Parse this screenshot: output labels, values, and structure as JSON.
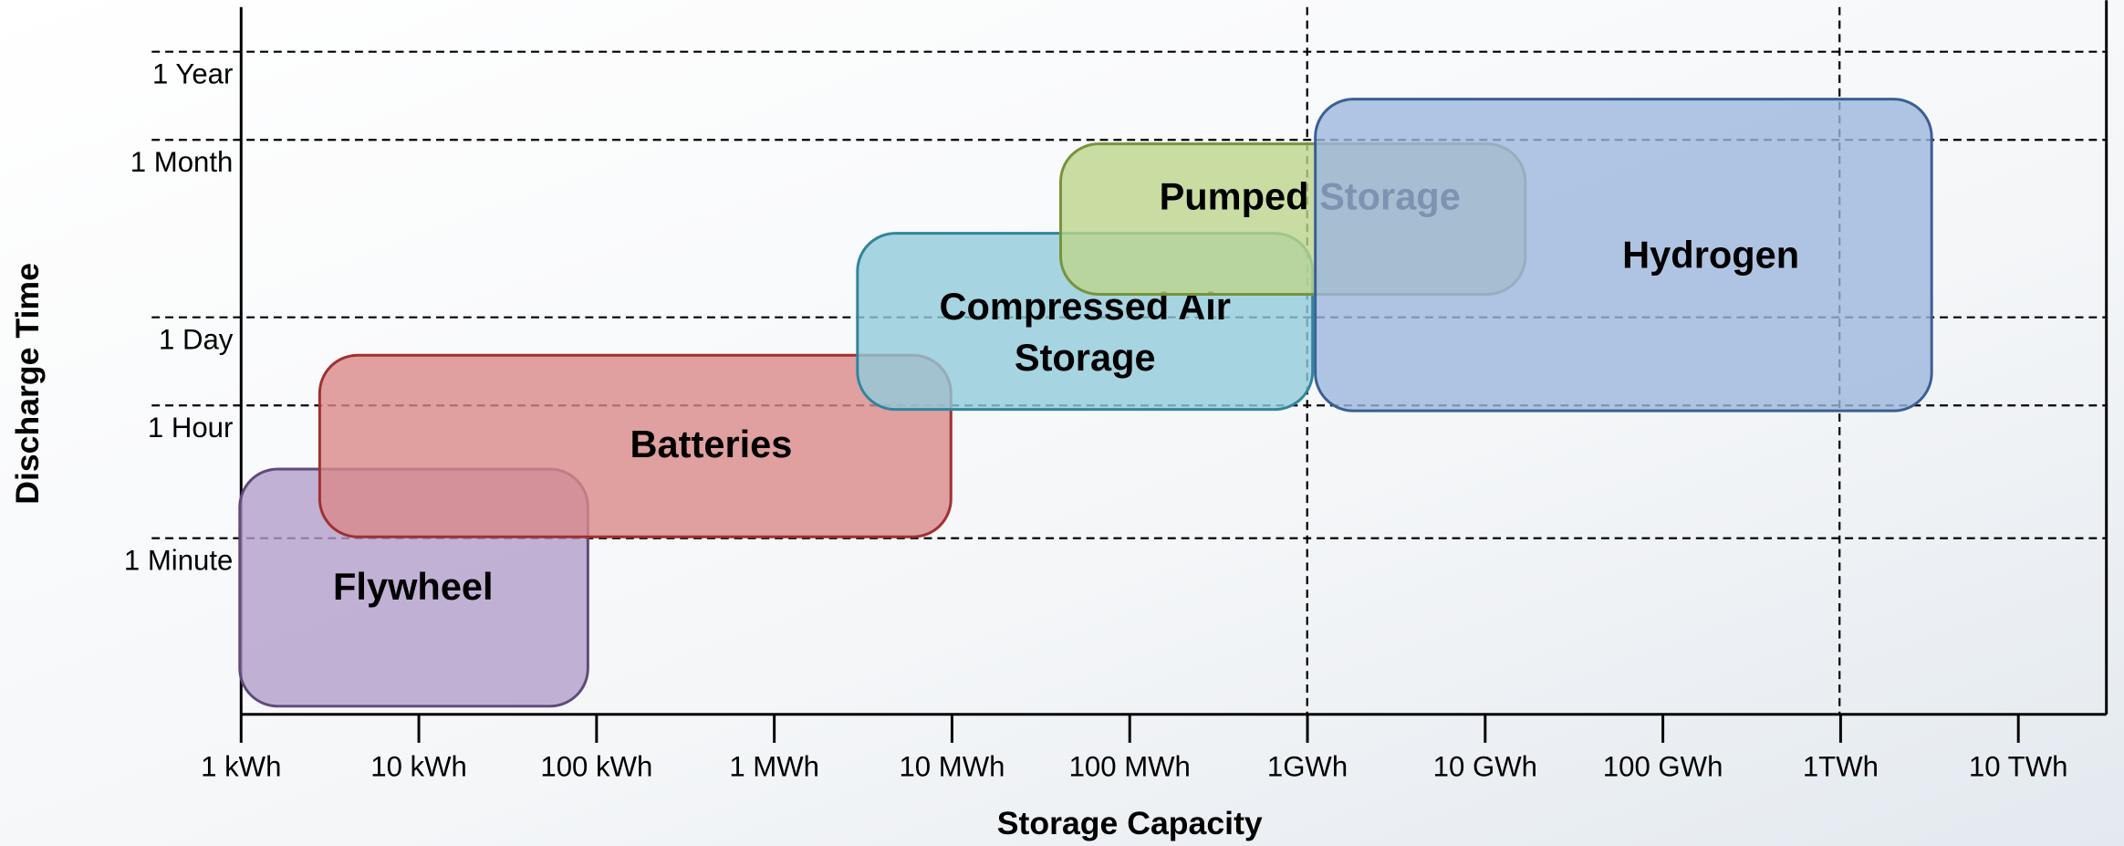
{
  "x_axis": {
    "title": "Storage Capacity",
    "ticks": [
      "1 kWh",
      "10 kWh",
      "100 kWh",
      "1 MWh",
      "10 MWh",
      "100 MWh",
      "1GWh",
      "10 GWh",
      "100 GWh",
      "1TWh",
      "10 TWh"
    ]
  },
  "y_axis": {
    "title": "Discharge Time",
    "ticks": [
      "1 Minute",
      "1 Hour",
      "1 Day",
      "1 Month",
      "1 Year"
    ]
  },
  "regions": [
    {
      "label": [
        "Flywheel"
      ]
    },
    {
      "label": [
        "Batteries"
      ]
    },
    {
      "label": [
        "Compressed Air",
        "Storage"
      ]
    },
    {
      "label": [
        "Pumped Storage"
      ]
    },
    {
      "label": [
        "Hydrogen"
      ]
    }
  ]
}
